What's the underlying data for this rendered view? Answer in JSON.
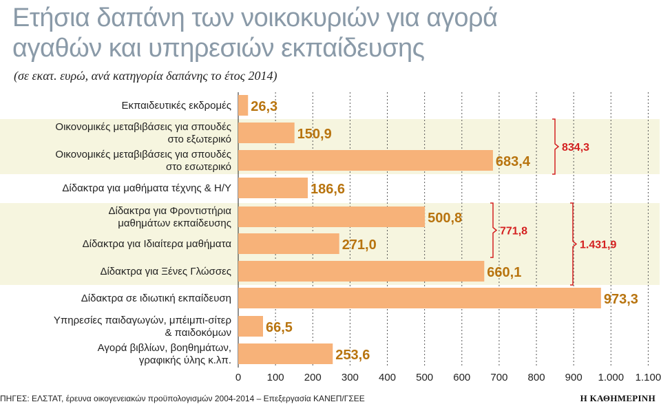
{
  "header": {
    "title_line1": "Ετήσια δαπάνη των νοικοκυριών για αγορά",
    "title_line2": "αγαθών και υπηρεσιών εκπαίδευσης",
    "subtitle": "(σε εκατ. ευρώ, ανά κατηγορία δαπάνης το έτος 2014)"
  },
  "chart_data": {
    "type": "bar",
    "orientation": "horizontal",
    "title": "Ετήσια δαπάνη των νοικοκυριών για αγορά αγαθών και υπηρεσιών εκπαίδευσης",
    "subtitle": "(σε εκατ. ευρώ, ανά κατηγορία δαπάνης το έτος 2014)",
    "categories": [
      [
        "Εκπαιδευτικές εκδρομές"
      ],
      [
        "Οικονομικές μεταβιβάσεις για σπουδές",
        "στο εξωτερικό"
      ],
      [
        "Οικονομικές μεταβιβάσεις για σπουδές",
        "στο εσωτερικό"
      ],
      [
        "Δίδακτρα για μαθήματα τέχνης & Η/Υ"
      ],
      [
        "Δίδακτρα για Φροντιστήρια",
        "μαθημάτων εκπαίδευσης"
      ],
      [
        "Δίδακτρα για Ιδιαίτερα μαθήματα"
      ],
      [
        "Δίδακτρα για Ξένες Γλώσσες"
      ],
      [
        "Δίδακτρα σε ιδιωτική εκπαίδευση"
      ],
      [
        "Υπηρεσίες παιδαγωγών, μπέιμπι-σίτερ",
        "& παιδοκόμων"
      ],
      [
        "Αγορά βιβλίων, βοηθημάτων,",
        "γραφικής ύλης κ.λπ."
      ]
    ],
    "values": [
      26.3,
      150.9,
      683.4,
      186.6,
      500.8,
      271.0,
      660.1,
      973.3,
      66.5,
      253.6
    ],
    "value_labels": [
      "26,3",
      "150,9",
      "683,4",
      "186,6",
      "500,8",
      "271,0",
      "660,1",
      "973,3",
      "66,5",
      "253,6"
    ],
    "xlim": [
      0,
      1100
    ],
    "xticks": [
      0,
      100,
      200,
      300,
      400,
      500,
      600,
      700,
      800,
      900,
      1000,
      1100
    ],
    "xtick_labels": [
      "0",
      "100",
      "200",
      "300",
      "400",
      "500",
      "600",
      "700",
      "800",
      "900",
      "1.000",
      "1.100"
    ],
    "grid": "vertical-dashed",
    "shaded_groups": [
      [
        1,
        2
      ],
      [
        4,
        5,
        6
      ]
    ],
    "annotations": [
      {
        "rows": [
          1,
          2
        ],
        "label": "834,3"
      },
      {
        "rows": [
          4,
          5
        ],
        "label": "771,8"
      },
      {
        "rows": [
          4,
          6
        ],
        "label": "1.431,9"
      }
    ]
  },
  "colors": {
    "bar": "#f7b279",
    "value_label": "#b8740f",
    "annotation": "#d42020",
    "shade": "#f6f5df",
    "grid": "#555555",
    "title": "#8a9aa8"
  },
  "footer": {
    "source": "ΠΗΓΕΣ: ΕΛΣΤΑΤ, έρευνα οικογενειακών προϋπολογισμών 2004-2014 – Επεξεργασία ΚΑΝΕΠ/ΓΣΕΕ",
    "brand": "Η ΚΑΘΗΜΕΡΙΝΗ"
  }
}
